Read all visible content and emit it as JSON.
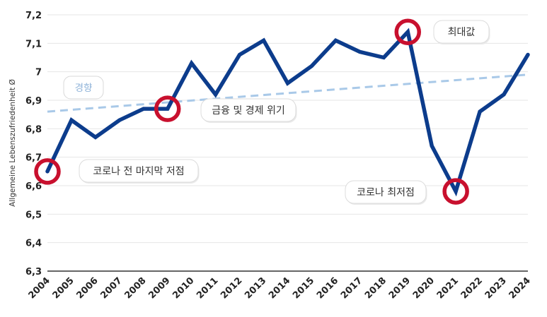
{
  "chart_data": {
    "type": "line",
    "xlabel": "",
    "ylabel": "Allgemeine Lebenszufriedenheit Ø",
    "ylim": [
      6.3,
      7.2
    ],
    "yticks": [
      "6,3",
      "6,4",
      "6,5",
      "6,6",
      "6,7",
      "6,8",
      "6,9",
      "7",
      "7,1",
      "7,2"
    ],
    "categories": [
      "2004",
      "2005",
      "2006",
      "2007",
      "2008",
      "2009",
      "2010",
      "2011",
      "2012",
      "2013",
      "2014",
      "2015",
      "2016",
      "2017",
      "2018",
      "2019",
      "2020",
      "2021",
      "2022",
      "2023",
      "2024"
    ],
    "series": [
      {
        "name": "",
        "values": [
          6.65,
          6.83,
          6.77,
          6.83,
          6.87,
          6.87,
          7.03,
          6.92,
          7.06,
          7.11,
          6.96,
          7.02,
          7.11,
          7.07,
          7.05,
          7.14,
          6.74,
          6.58,
          6.86,
          6.92,
          7.06
        ]
      }
    ],
    "trend": {
      "label": "경향",
      "start": 6.86,
      "end": 6.99
    },
    "grid": "horizontal",
    "annotations": [
      {
        "label": "코로나 전 마지막 저점",
        "year": "2004"
      },
      {
        "label": "금융 및 경제 위기",
        "year": "2009"
      },
      {
        "label": "최대값",
        "year": "2019"
      },
      {
        "label": "코로나 최저점",
        "year": "2021"
      }
    ],
    "colors": {
      "line": "#0c3c8c",
      "trend": "#a9c9e8",
      "marker": "#c8102e",
      "grid": "#e6e6e6"
    }
  }
}
